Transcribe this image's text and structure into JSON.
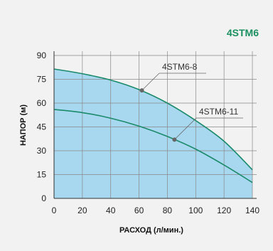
{
  "header": {
    "model": "4STM6"
  },
  "chart_data": {
    "type": "area",
    "title": "4STM6",
    "xlabel": "РАСХОД (л/мин.)",
    "ylabel": "НАПОР (м)",
    "xlim": [
      0,
      140
    ],
    "ylim": [
      0,
      90
    ],
    "x_ticks": [
      0,
      20,
      40,
      60,
      80,
      100,
      120,
      140
    ],
    "y_ticks": [
      0,
      15,
      30,
      45,
      60,
      75,
      90
    ],
    "grid": true,
    "series": [
      {
        "name": "4STM6-8",
        "x": [
          0,
          20,
          40,
          60,
          80,
          100,
          120,
          140
        ],
        "y": [
          81.5,
          78.5,
          74.5,
          68.5,
          60,
          49,
          36,
          18
        ],
        "marker": {
          "x": 62,
          "y": 68
        }
      },
      {
        "name": "4STM6-11",
        "x": [
          0,
          20,
          40,
          60,
          80,
          100,
          120,
          140
        ],
        "y": [
          56,
          54,
          50.5,
          45.5,
          39,
          31,
          21,
          10
        ],
        "marker": {
          "x": 85,
          "y": 37
        }
      }
    ],
    "colors": {
      "line": "#1a8a6a",
      "fill": "#a8d8ef",
      "grid": "#888888",
      "marker": "#666666",
      "title": "#1a9060"
    }
  }
}
